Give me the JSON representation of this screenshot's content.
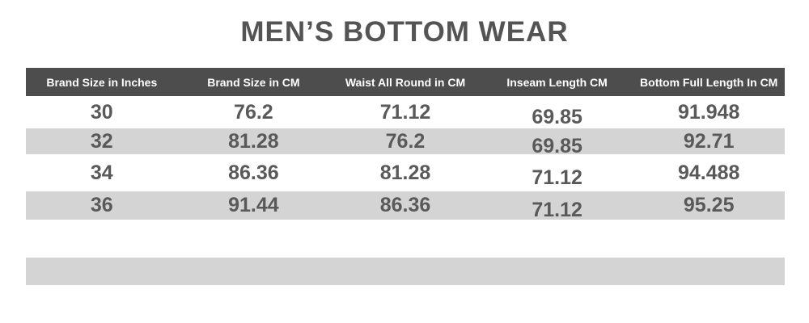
{
  "title": "MEN’S BOTTOM WEAR",
  "table": {
    "columns": [
      "Brand Size in Inches",
      "Brand Size in CM",
      "Waist All Round in CM",
      "Inseam Length CM",
      "Bottom Full Length In CM"
    ],
    "rows": [
      [
        "30",
        "76.2",
        "71.12",
        "69.85",
        "91.948"
      ],
      [
        "32",
        "81.28",
        "76.2",
        "69.85",
        "92.71"
      ],
      [
        "34",
        "86.36",
        "81.28",
        "71.12",
        "94.488"
      ],
      [
        "36",
        "91.44",
        "86.36",
        "71.12",
        "95.25"
      ]
    ]
  },
  "colors": {
    "header_bg": "#4d4d4d",
    "header_text": "#ffffff",
    "row_alt_bg": "#d4d4d4",
    "text": "#595959",
    "title_text": "#545454",
    "page_bg": "#ffffff"
  }
}
